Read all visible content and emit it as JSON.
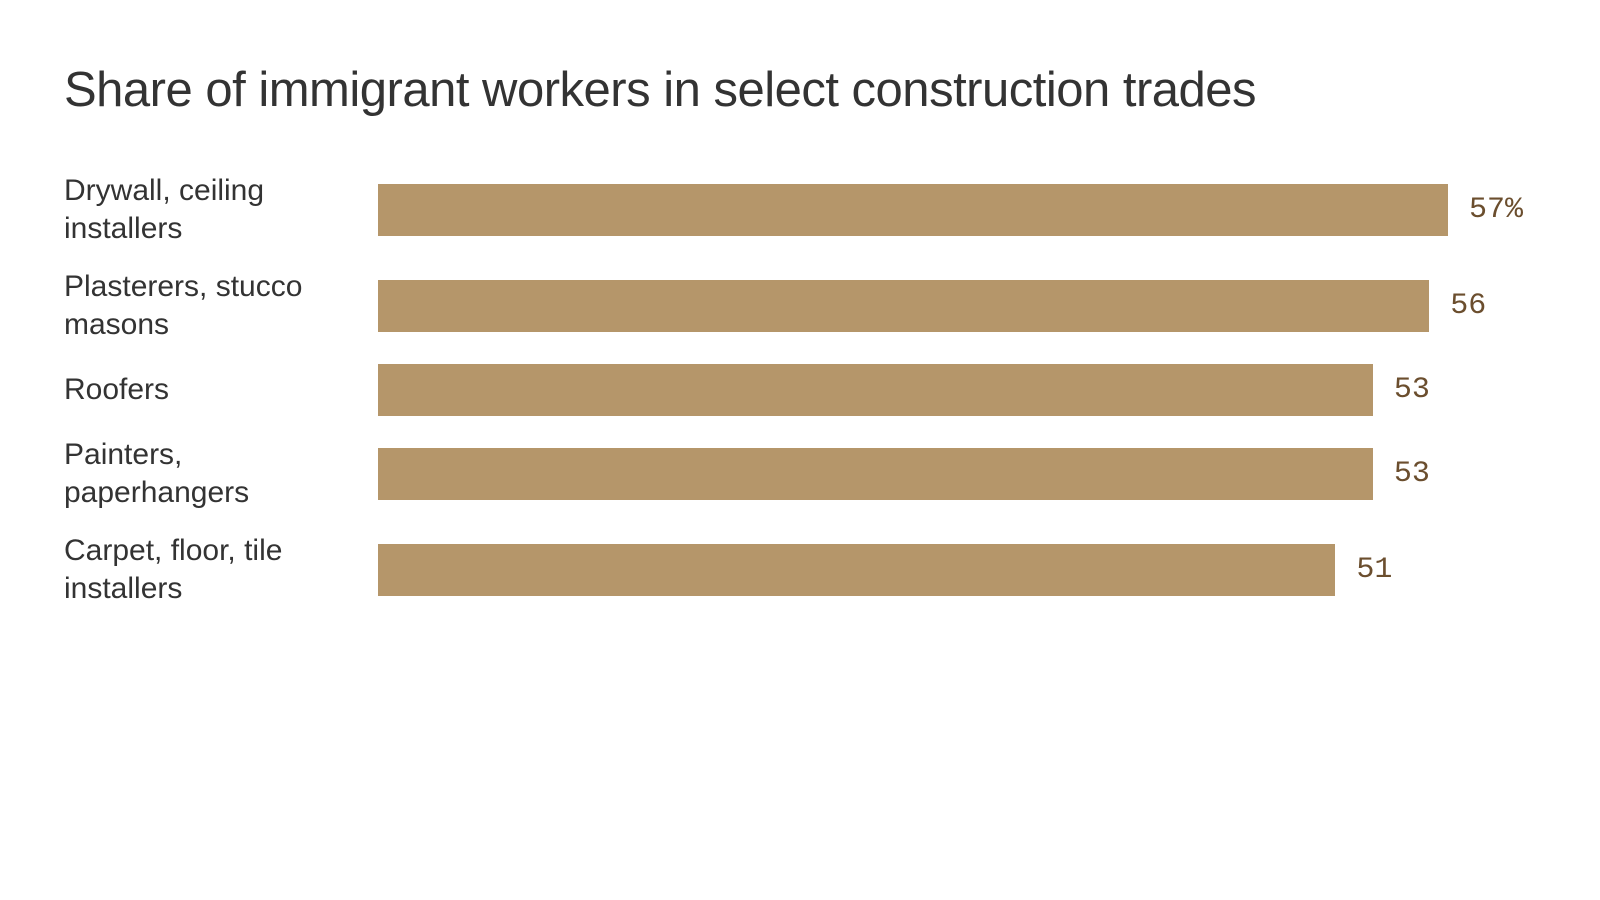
{
  "chart_data": {
    "type": "bar",
    "orientation": "horizontal",
    "title": "Share of immigrant workers in select construction trades",
    "categories": [
      "Drywall, ceiling installers",
      "Plasterers, stucco masons",
      "Roofers",
      "Painters, paperhangers",
      "Carpet, floor, tile installers"
    ],
    "values": [
      57,
      56,
      53,
      53,
      51
    ],
    "value_labels": [
      "57%",
      "56",
      "53",
      "53",
      "51"
    ],
    "color": "#b5966a"
  }
}
